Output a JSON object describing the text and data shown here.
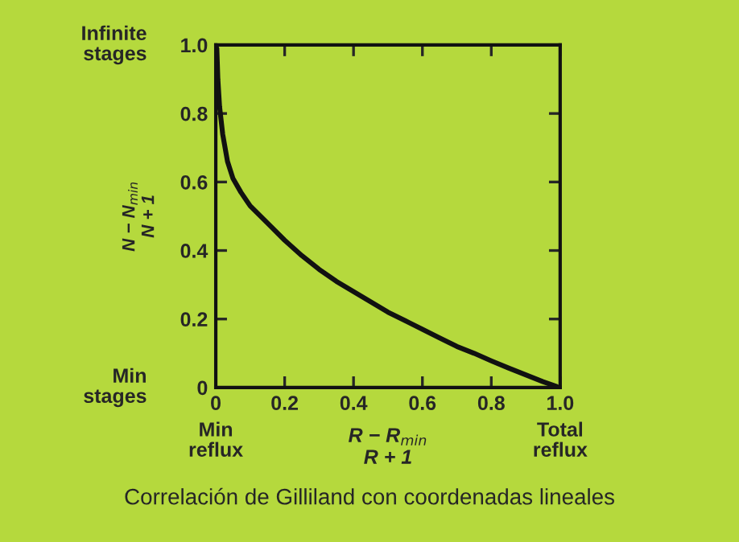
{
  "chart_data": {
    "type": "line",
    "title": "Correlación de Gilliland con coordenadas lineales",
    "xlabel": "R − R$_{min}$\nR + 1",
    "ylabel": "N − N$_{min}$\nN + 1",
    "annotations": [
      "Infinite\nstages",
      "Min\nstages",
      "Min\nreflux",
      "Total\nreflux"
    ],
    "series": [
      {
        "color": "#111111",
        "x": [
          0.003,
          0.006,
          0.011,
          0.02,
          0.034,
          0.05,
          0.073,
          0.1,
          0.12,
          0.16,
          0.2,
          0.25,
          0.3,
          0.35,
          0.4,
          0.45,
          0.5,
          0.55,
          0.6,
          0.65,
          0.7,
          0.75,
          0.8,
          0.85,
          0.9,
          0.95,
          0.99
        ],
        "values": [
          0.99,
          0.9,
          0.82,
          0.74,
          0.66,
          0.61,
          0.57,
          0.53,
          0.51,
          0.47,
          0.43,
          0.385,
          0.345,
          0.31,
          0.28,
          0.25,
          0.22,
          0.195,
          0.17,
          0.145,
          0.12,
          0.1,
          0.078,
          0.057,
          0.037,
          0.017,
          0.003
        ]
      }
    ],
    "xlim": [
      0,
      1.0
    ],
    "ylim": [
      0,
      1.0
    ],
    "xticks": [
      0,
      0.2,
      0.4,
      0.6,
      0.8,
      {
        "value": 1.0,
        "label": "1.0"
      }
    ],
    "yticks": [
      0,
      0.2,
      0.4,
      0.6,
      0.8,
      {
        "value": 1.0,
        "label": "1.0"
      }
    ],
    "grid": false,
    "legend": false,
    "line_style": "solid",
    "marker": "none"
  }
}
